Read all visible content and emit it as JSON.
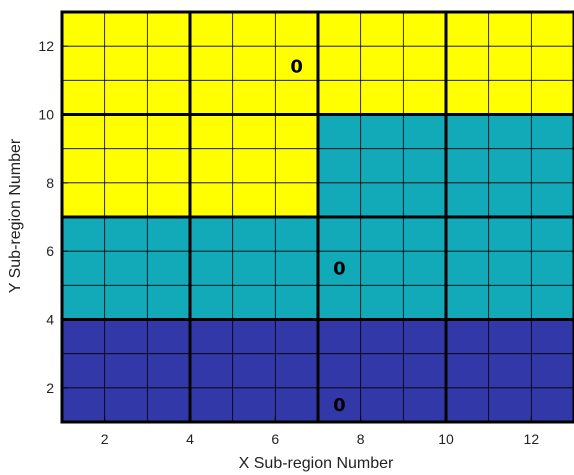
{
  "chart_data": {
    "type": "heatmap",
    "title": "",
    "xlabel": "X Sub-region Number",
    "ylabel": "Y Sub-region Number",
    "xlim": [
      1,
      13
    ],
    "ylim": [
      1,
      13
    ],
    "xticks": [
      2,
      4,
      6,
      8,
      10,
      12
    ],
    "yticks": [
      2,
      4,
      6,
      8,
      10,
      12
    ],
    "fine_grid_step": 1,
    "grid": true,
    "colors": {
      "yellow": "#ffff00",
      "teal": "#12aab8",
      "blue": "#3338a8",
      "grid_line": "#000000"
    },
    "regions": [
      {
        "x0": 1,
        "x1": 13,
        "y0": 1,
        "y1": 4,
        "color": "blue"
      },
      {
        "x0": 1,
        "x1": 13,
        "y0": 4,
        "y1": 7,
        "color": "teal"
      },
      {
        "x0": 1,
        "x1": 7,
        "y0": 7,
        "y1": 13,
        "color": "yellow"
      },
      {
        "x0": 7,
        "x1": 13,
        "y0": 7,
        "y1": 10,
        "color": "teal"
      },
      {
        "x0": 7,
        "x1": 13,
        "y0": 10,
        "y1": 13,
        "color": "yellow"
      }
    ],
    "block_boundaries_x": [
      4,
      7,
      10
    ],
    "block_boundaries_y": [
      4,
      7,
      10
    ],
    "annotations": [
      {
        "text": "0",
        "x": 6.5,
        "y": 11.4
      },
      {
        "text": "0",
        "x": 7.5,
        "y": 5.5
      },
      {
        "text": "0",
        "x": 7.5,
        "y": 1.5
      }
    ]
  }
}
